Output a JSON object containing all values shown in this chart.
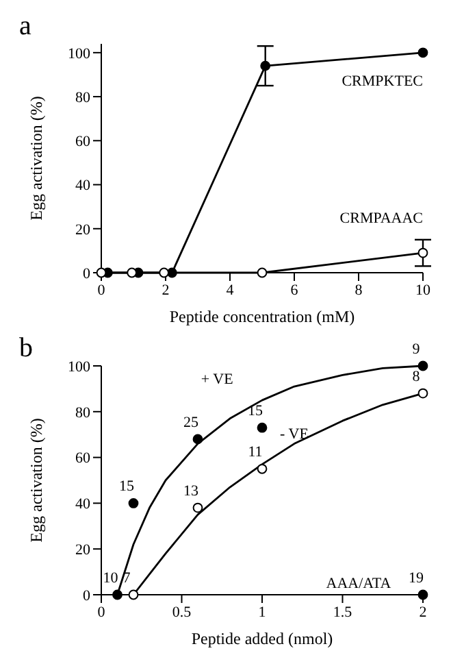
{
  "chart_data": [
    {
      "type": "line",
      "title": "a",
      "xlabel": "Peptide concentration (mM)",
      "ylabel": "Egg activation (%)",
      "xlim": [
        0,
        10
      ],
      "ylim": [
        0,
        104
      ],
      "xticks": [
        0,
        2,
        4,
        6,
        8,
        10
      ],
      "yticks": [
        0,
        20,
        40,
        60,
        80,
        100
      ],
      "grid": false,
      "legend": false,
      "line_style": "solid",
      "series": [
        {
          "name": "CRMPAAAC",
          "color": "#000000",
          "marker": "none",
          "x": [
            0,
            0.95,
            1.95,
            5,
            10
          ],
          "values": [
            0,
            0,
            0,
            0,
            9
          ]
        },
        {
          "name": "CRMPKTEC",
          "color": "#000000",
          "marker": "circle",
          "x": [
            0.2,
            1.15,
            2.2,
            5.1,
            10
          ],
          "values": [
            0,
            0,
            0,
            94,
            100
          ],
          "errors": [
            null,
            null,
            null,
            [
              85,
              103
            ],
            null
          ]
        },
        {
          "type": "scatter",
          "color": "#ffffff",
          "marker": "circle",
          "x": [
            0,
            0.95,
            1.95,
            5,
            10
          ],
          "values": [
            0,
            0,
            0,
            0,
            9
          ],
          "errors": [
            null,
            null,
            null,
            null,
            6
          ]
        }
      ]
    },
    {
      "type": "scatter",
      "title": "b",
      "xlabel": "Peptide added (nmol)",
      "ylabel": "Egg activation (%)",
      "xlim": [
        0,
        2
      ],
      "ylim": [
        0,
        100
      ],
      "xticks": [
        0,
        0.5,
        1,
        1.5,
        2
      ],
      "yticks": [
        0,
        20,
        40,
        60,
        80,
        100
      ],
      "grid": false,
      "legend": false,
      "line_style": "solid",
      "annotations": [
        "+ VE",
        "- VE",
        "AAA/ATA",
        {
          "text": "10",
          "x": 0.1,
          "y": 0
        },
        {
          "text": "7",
          "x": 0.2,
          "y": 0
        },
        {
          "text": "15",
          "x": 0.2,
          "y": 40
        },
        {
          "text": "25",
          "x": 0.6,
          "y": 68
        },
        {
          "text": "13",
          "x": 0.6,
          "y": 38
        },
        {
          "text": "15",
          "x": 1,
          "y": 73
        },
        {
          "text": "11",
          "x": 1,
          "y": 55
        },
        {
          "text": "9",
          "x": 2,
          "y": 100
        },
        {
          "text": "8",
          "x": 2,
          "y": 88
        },
        {
          "text": "19",
          "x": 2,
          "y": 0
        }
      ],
      "series": [
        {
          "type": "line",
          "color": "#000000",
          "marker": "none",
          "x": [
            0.1,
            0.2,
            0.3,
            0.4,
            0.6,
            0.8,
            1.0,
            1.2,
            1.5,
            1.75,
            2
          ],
          "values": [
            0,
            22,
            38,
            50,
            66,
            77,
            85,
            91,
            96,
            99,
            100
          ]
        },
        {
          "type": "line",
          "color": "#000000",
          "marker": "none",
          "x": [
            0.2,
            0.3,
            0.4,
            0.6,
            0.8,
            1.0,
            1.2,
            1.5,
            1.75,
            2
          ],
          "values": [
            0,
            9,
            18,
            35,
            47,
            57,
            66,
            76,
            83,
            88
          ]
        },
        {
          "color": "#000000",
          "marker": "circle",
          "x": [
            0.1,
            0.2,
            0.6,
            1,
            2
          ],
          "values": [
            0,
            40,
            68,
            73,
            100
          ]
        },
        {
          "color": "#ffffff",
          "marker": "circle",
          "x": [
            0.2,
            0.6,
            1,
            2
          ],
          "values": [
            0,
            38,
            55,
            88
          ]
        },
        {
          "color": "#000000",
          "marker": "circle",
          "x": [
            2
          ],
          "values": [
            0
          ]
        }
      ]
    }
  ]
}
